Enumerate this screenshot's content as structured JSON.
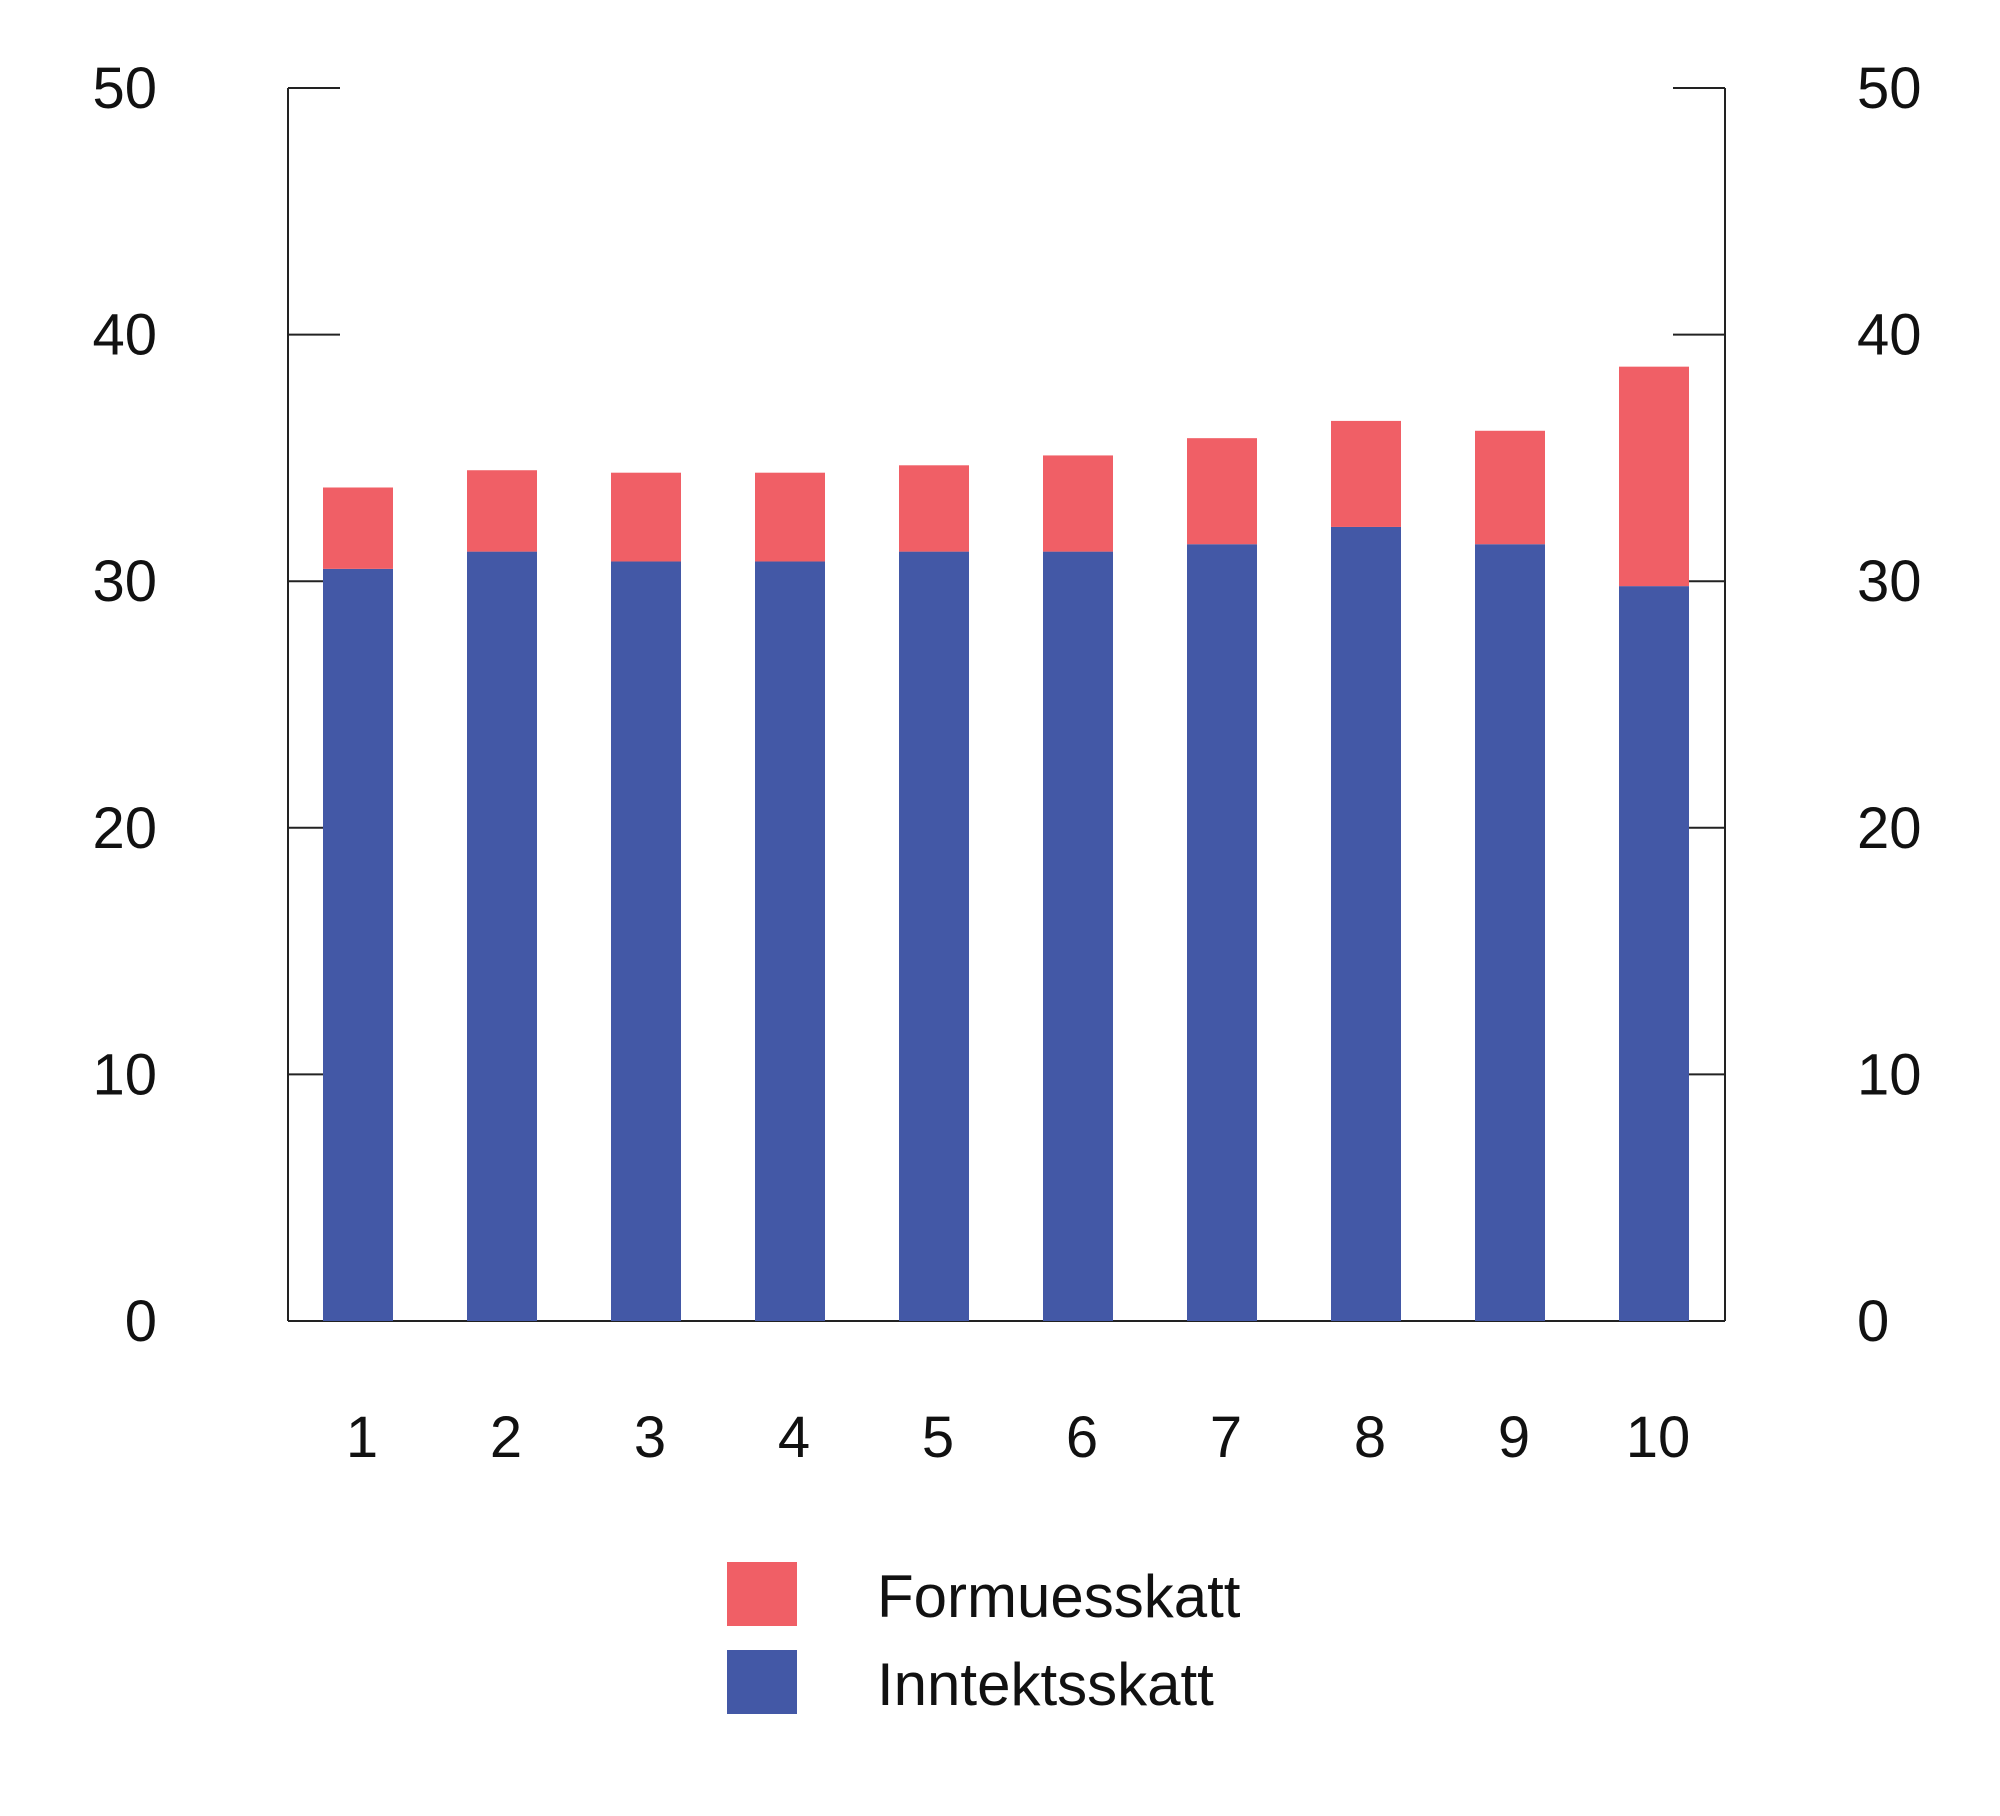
{
  "chart_data": {
    "type": "bar",
    "stacked": true,
    "categories": [
      "1",
      "2",
      "3",
      "4",
      "5",
      "6",
      "7",
      "8",
      "9",
      "10"
    ],
    "series": [
      {
        "name": "Inntektsskatt",
        "color": "#4358a6",
        "values": [
          30.5,
          31.2,
          30.8,
          30.8,
          31.2,
          31.2,
          31.5,
          32.2,
          31.5,
          29.8
        ]
      },
      {
        "name": "Formuesskatt",
        "color": "#f05f66",
        "values": [
          3.3,
          3.3,
          3.6,
          3.6,
          3.5,
          3.9,
          4.3,
          4.3,
          4.6,
          8.9
        ]
      }
    ],
    "ylim": [
      0,
      50
    ],
    "yticks": [
      "0",
      "10",
      "20",
      "30",
      "40",
      "50"
    ],
    "secondary_y_axis": true,
    "grid": false,
    "legend_position": "bottom"
  }
}
